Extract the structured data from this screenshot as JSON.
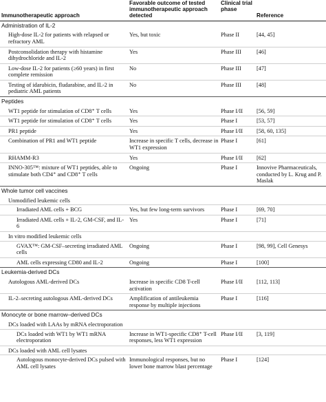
{
  "header": {
    "approach": "Immunotherapeutic approach",
    "outcome": "Favorable outcome of tested immunotherapeutic approach detected",
    "phase": "Clinical trial phase",
    "reference": "Reference"
  },
  "sections": [
    {
      "title": "Administration of IL-2",
      "rows": [
        {
          "level": 1,
          "approach": "High-dose IL-2 for patients with relapsed or refractory AML",
          "outcome": "Yes, but toxic",
          "phase": "Phase II",
          "reference": "[44, 45]"
        },
        {
          "level": 1,
          "approach": "Postconsolidation therapy with histamine dihydrochloride and IL-2",
          "outcome": "Yes",
          "phase": "Phase III",
          "reference": "[46]"
        },
        {
          "level": 1,
          "approach": "Low-dose IL-2 for patients (≥60 years) in first complete remission",
          "outcome": "No",
          "phase": "Phase III",
          "reference": "[47]"
        },
        {
          "level": 1,
          "approach": "Testing of idarubicin, fludarabine, and IL-2 in pediatric AML patients",
          "outcome": "No",
          "phase": "Phase III",
          "reference": "[48]"
        }
      ]
    },
    {
      "title": "Peptides",
      "rows": [
        {
          "level": 1,
          "approach": "WT1 peptide for stimulation of CD8⁺ T cells",
          "outcome": "Yes",
          "phase": "Phase I/II",
          "reference": "[56, 59]"
        },
        {
          "level": 1,
          "approach": "WT1 peptide for stimulation of CD8⁺ T cells",
          "outcome": "Yes",
          "phase": "Phase I",
          "reference": "[53, 57]"
        },
        {
          "level": 1,
          "approach": "PR1 peptide",
          "outcome": "Yes",
          "phase": "Phase I/II",
          "reference": "[58, 60, 135]"
        },
        {
          "level": 1,
          "approach": "Combination of PR1 and WT1 peptide",
          "outcome": "Increase in specific T cells, decrease in WT1 expression",
          "phase": "Phase I",
          "reference": "[61]"
        },
        {
          "level": 1,
          "approach": "RHAMM-R3",
          "outcome": "Yes",
          "phase": "Phase I/II",
          "reference": "[62]"
        },
        {
          "level": 1,
          "approach": "INNO-305™: mixture of WT1 peptides, able to stimulate both CD4⁺ and CD8⁺ T cells",
          "outcome": "Ongoing",
          "phase": "Phase I",
          "reference": "Innovive Pharmaceuticals, conducted by L. Krug and P. Maslak"
        }
      ]
    },
    {
      "title": "Whole tumor cell vaccines",
      "subsections": [
        {
          "title": "Unmodified leukemic cells",
          "rows": [
            {
              "level": 2,
              "approach": "Irradiated AML cells + BCG",
              "outcome": "Yes, but few long-term survivors",
              "phase": "Phase I",
              "reference": "[69, 70]"
            },
            {
              "level": 2,
              "approach": "Irradiated AML cells + IL-2, GM-CSF, and IL-6",
              "outcome": "Yes",
              "phase": "Phase I",
              "reference": "[71]"
            }
          ]
        },
        {
          "title": "In vitro modified leukemic cells",
          "rows": [
            {
              "level": 2,
              "approach": "GVAX™: GM-CSF–secreting irradiated AML cells",
              "outcome": "Ongoing",
              "phase": "Phase I",
              "reference": "[98, 99], Cell Genesys"
            },
            {
              "level": 2,
              "approach": "AML cells expressing CD80 and IL-2",
              "outcome": "Ongoing",
              "phase": "Phase I",
              "reference": "[100]"
            }
          ]
        }
      ]
    },
    {
      "title": "Leukemia-derived DCs",
      "rows": [
        {
          "level": 1,
          "approach": "Autologous AML-derived DCs",
          "outcome": "Increase in specific CD8 T-cell activation",
          "phase": "Phase I/II",
          "reference": "[112, 113]"
        },
        {
          "level": 1,
          "approach": "IL-2–secreting autologous AML-derived DCs",
          "outcome": "Amplification of antileukemia response by multiple injections",
          "phase": "Phase I",
          "reference": "[116]"
        }
      ]
    },
    {
      "title": "Monocyte or bone marrow–derived DCs",
      "subsections": [
        {
          "title": "DCs loaded with LAAs by mRNA electroporation",
          "rows": [
            {
              "level": 2,
              "approach": "DCs loaded with WT1 by WT1 mRNA electroporation",
              "outcome": "Increase in WT1-specific CD8⁺ T-cell responses, less WT1 expression",
              "phase": "Phase I/II",
              "reference": "[3, 119]"
            }
          ]
        },
        {
          "title": "DCs loaded with AML cell lysates",
          "rows": [
            {
              "level": 2,
              "approach": "Autologous monocyte-derived DCs pulsed with AML cell lysates",
              "outcome": "Immunological responses, but no lower bone marrow blast percentage",
              "phase": "Phase I",
              "reference": "[124]"
            }
          ]
        }
      ]
    }
  ]
}
